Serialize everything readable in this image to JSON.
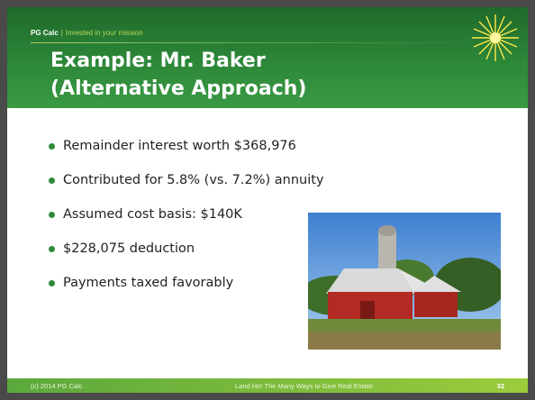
{
  "header": {
    "brand": "PG Calc",
    "separator": "|",
    "tagline": "Invested in your mission"
  },
  "title": [
    "Example: Mr. Baker",
    "(Alternative Approach)"
  ],
  "bullets": [
    "Remainder interest worth $368,976",
    "Contributed for 5.8% (vs. 7.2%) annuity",
    "Assumed cost basis: $140K",
    "$228,075 deduction",
    "Payments taxed favorably"
  ],
  "footer": {
    "left": "(c) 2014 PG Calc",
    "center": "Land Ho! The Many Ways to Give Real Estate",
    "right": "32"
  }
}
